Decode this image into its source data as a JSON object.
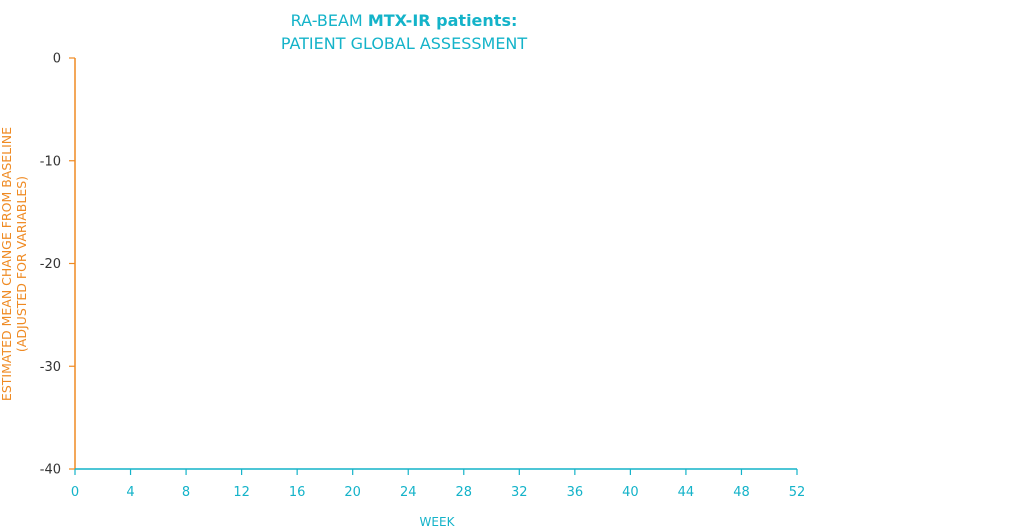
{
  "chart_data": {
    "type": "line",
    "title": {
      "line1_prefix": "RA-BEAM ",
      "line1_bold": "MTX-IR patients:",
      "line2": "PATIENT GLOBAL ASSESSMENT"
    },
    "xlabel": "WEEK",
    "ylabel_line1": "ESTIMATED MEAN CHANGE FROM BASELINE",
    "ylabel_line2": "(ADJUSTED FOR VARIABLES)",
    "x_ticks": [
      0,
      4,
      8,
      12,
      16,
      20,
      24,
      28,
      32,
      36,
      40,
      44,
      48,
      52
    ],
    "y_ticks": [
      0,
      -10,
      -20,
      -30,
      -40
    ],
    "xlim": [
      0,
      52
    ],
    "ylim": [
      -40,
      0
    ],
    "series": [],
    "grid": false
  },
  "colors": {
    "title": "#14b3c9",
    "x_axis": "#14b3c9",
    "y_axis": "#ef8a22",
    "ylabel": "#ef8a22",
    "tick_labels_x": "#14b3c9",
    "tick_labels_y": "#333333"
  }
}
